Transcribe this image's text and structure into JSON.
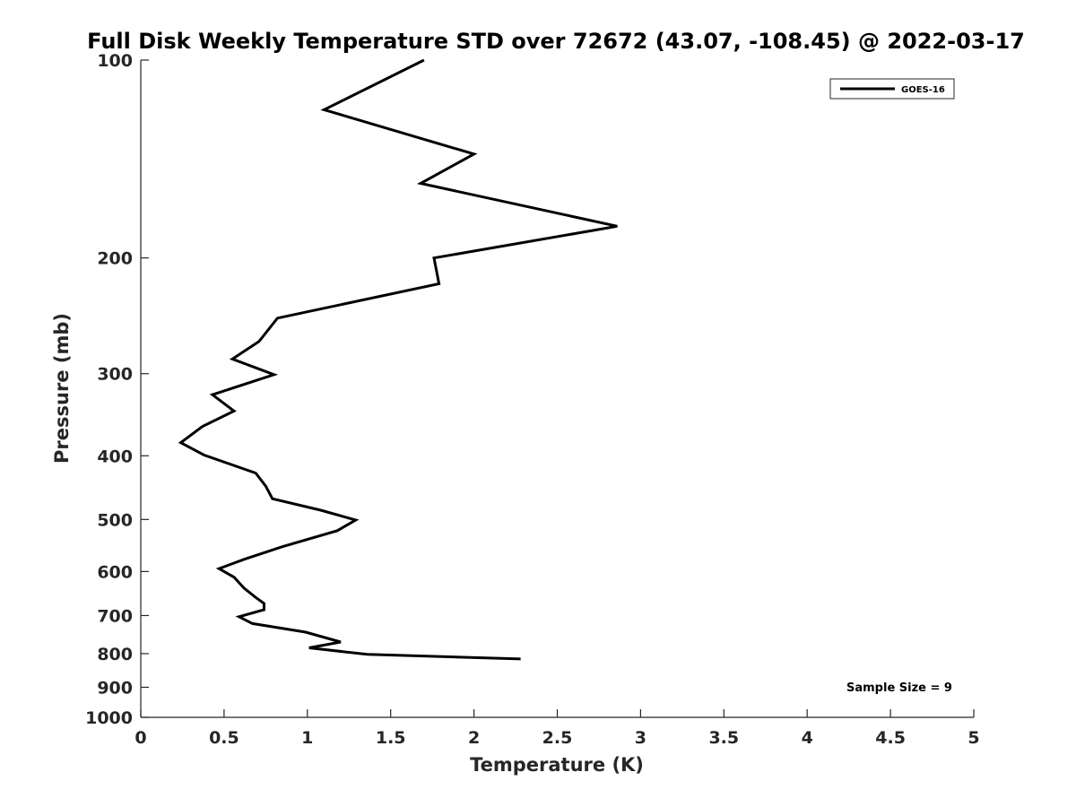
{
  "chart_data": {
    "type": "line",
    "title": "Full Disk Weekly Temperature STD over 72672 (43.07, -108.45) @ 2022-03-17",
    "xlabel": "Temperature (K)",
    "ylabel": "Pressure (mb)",
    "xlim": [
      0,
      5
    ],
    "ylim": [
      100,
      1000
    ],
    "y_scale": "log",
    "y_reversed": true,
    "grid": false,
    "x_ticks": [
      "0",
      "0.5",
      "1",
      "1.5",
      "2",
      "2.5",
      "3",
      "3.5",
      "4",
      "4.5",
      "5"
    ],
    "y_ticks": [
      "100",
      "200",
      "300",
      "400",
      "500",
      "600",
      "700",
      "800",
      "900",
      "1000"
    ],
    "legend": {
      "placement": "top-right",
      "entries": [
        "GOES-16"
      ]
    },
    "annotation": "Sample Size = 9",
    "series": [
      {
        "name": "GOES-16",
        "color": "#000000",
        "points": [
          {
            "x": 1.7,
            "y": 100
          },
          {
            "x": 1.1,
            "y": 119
          },
          {
            "x": 2.0,
            "y": 139
          },
          {
            "x": 1.68,
            "y": 154
          },
          {
            "x": 2.86,
            "y": 179
          },
          {
            "x": 1.76,
            "y": 200
          },
          {
            "x": 1.79,
            "y": 219
          },
          {
            "x": 0.82,
            "y": 247
          },
          {
            "x": 0.71,
            "y": 268
          },
          {
            "x": 0.55,
            "y": 285
          },
          {
            "x": 0.8,
            "y": 301
          },
          {
            "x": 0.43,
            "y": 323
          },
          {
            "x": 0.56,
            "y": 342
          },
          {
            "x": 0.37,
            "y": 361
          },
          {
            "x": 0.24,
            "y": 382
          },
          {
            "x": 0.38,
            "y": 399
          },
          {
            "x": 0.69,
            "y": 425
          },
          {
            "x": 0.75,
            "y": 445
          },
          {
            "x": 0.79,
            "y": 465
          },
          {
            "x": 1.08,
            "y": 484
          },
          {
            "x": 1.29,
            "y": 501
          },
          {
            "x": 1.18,
            "y": 520
          },
          {
            "x": 0.85,
            "y": 550
          },
          {
            "x": 0.62,
            "y": 575
          },
          {
            "x": 0.47,
            "y": 594
          },
          {
            "x": 0.56,
            "y": 612
          },
          {
            "x": 0.62,
            "y": 636
          },
          {
            "x": 0.69,
            "y": 657
          },
          {
            "x": 0.74,
            "y": 671
          },
          {
            "x": 0.74,
            "y": 686
          },
          {
            "x": 0.59,
            "y": 703
          },
          {
            "x": 0.67,
            "y": 720
          },
          {
            "x": 0.99,
            "y": 742
          },
          {
            "x": 1.2,
            "y": 768
          },
          {
            "x": 1.01,
            "y": 784
          },
          {
            "x": 1.36,
            "y": 802
          },
          {
            "x": 2.28,
            "y": 815
          }
        ]
      }
    ]
  }
}
